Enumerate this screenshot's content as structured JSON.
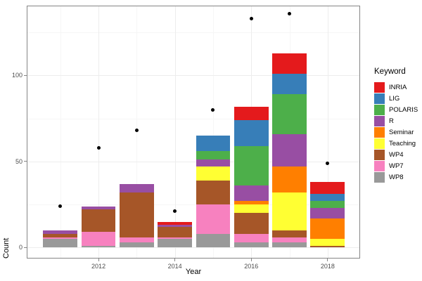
{
  "axes": {
    "x_label": "Year",
    "y_label": "Count",
    "y_ticks": [
      0,
      50,
      100
    ],
    "y_minor": [
      25,
      75,
      125
    ],
    "x_ticks": [
      2012,
      2014,
      2016,
      2018
    ],
    "x_minor": [
      2011,
      2013,
      2015,
      2017
    ]
  },
  "legend": {
    "title": "Keyword",
    "items": [
      {
        "label": "INRIA",
        "color": "#E41A1C"
      },
      {
        "label": "LIG",
        "color": "#377EB8"
      },
      {
        "label": "POLARIS",
        "color": "#4DAF4A"
      },
      {
        "label": "R",
        "color": "#984EA3"
      },
      {
        "label": "Seminar",
        "color": "#FF7F00"
      },
      {
        "label": "Teaching",
        "color": "#FFFF33"
      },
      {
        "label": "WP4",
        "color": "#A65628"
      },
      {
        "label": "WP7",
        "color": "#F781BF"
      },
      {
        "label": "WP8",
        "color": "#999999"
      }
    ]
  },
  "chart_data": {
    "type": "bar",
    "stacked": true,
    "title": "",
    "xlabel": "Year",
    "ylabel": "Count",
    "categories": [
      2011,
      2012,
      2013,
      2014,
      2015,
      2016,
      2017,
      2018
    ],
    "series": [
      {
        "name": "WP8",
        "color": "#999999",
        "values": [
          5,
          1,
          3,
          5,
          8,
          3,
          3,
          0
        ]
      },
      {
        "name": "WP7",
        "color": "#F781BF",
        "values": [
          1,
          8,
          3,
          1,
          17,
          5,
          3,
          0
        ]
      },
      {
        "name": "WP4",
        "color": "#A65628",
        "values": [
          2,
          13,
          26,
          6,
          14,
          12,
          4,
          1
        ]
      },
      {
        "name": "Teaching",
        "color": "#FFFF33",
        "values": [
          0,
          0,
          0,
          0,
          8,
          5,
          22,
          4
        ]
      },
      {
        "name": "Seminar",
        "color": "#FF7F00",
        "values": [
          0,
          0,
          0,
          0,
          0,
          2,
          15,
          12
        ]
      },
      {
        "name": "R",
        "color": "#984EA3",
        "values": [
          2,
          2,
          5,
          1,
          4,
          9,
          19,
          6
        ]
      },
      {
        "name": "POLARIS",
        "color": "#4DAF4A",
        "values": [
          0,
          0,
          0,
          0,
          5,
          23,
          23,
          4
        ]
      },
      {
        "name": "LIG",
        "color": "#377EB8",
        "values": [
          0,
          0,
          0,
          0,
          9,
          15,
          12,
          4
        ]
      },
      {
        "name": "INRIA",
        "color": "#E41A1C",
        "values": [
          0,
          0,
          0,
          2,
          0,
          8,
          12,
          7
        ]
      }
    ],
    "points": {
      "name": "dots",
      "color": "#000000",
      "values": [
        24,
        58,
        68,
        21,
        80,
        133,
        136,
        49
      ]
    },
    "stack_note": "stacked bottom-to-top: WP8,WP7,WP4,Teaching,Seminar,R,POLARIS,LIG,INRIA",
    "xlim": [
      2010.12,
      2018.85
    ],
    "ylim": [
      -6.4,
      140.6
    ],
    "bar_rel_width": 0.9,
    "grid": true,
    "legend_position": "right"
  },
  "style_colors": {
    "panel_border": "#858585",
    "grid_major": "#ededed",
    "grid_minor": "#f6f6f6",
    "tick_text": "#4d4d4d",
    "point": "#000000"
  }
}
